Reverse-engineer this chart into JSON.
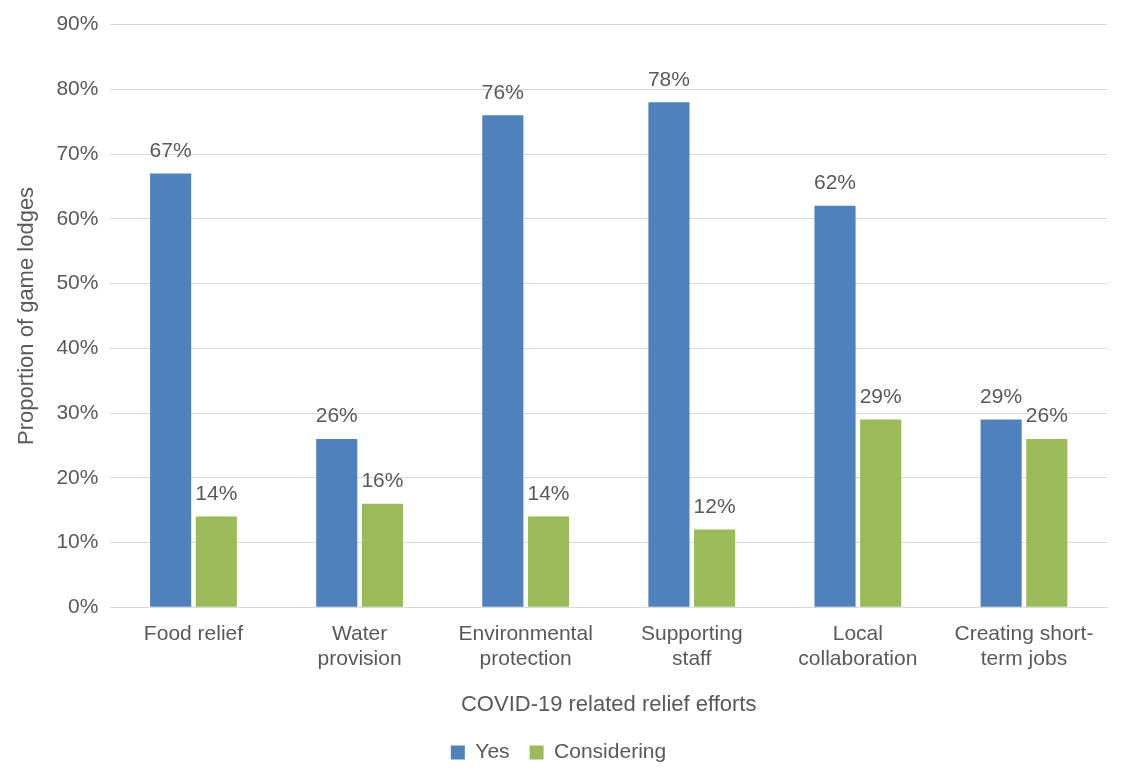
{
  "chart_data": {
    "type": "bar",
    "xlabel": "COVID-19 related relief efforts",
    "ylabel": "Proportion of game lodges",
    "categories": [
      "Food relief",
      "Water provision",
      "Environmental protection",
      "Supporting staff",
      "Local collaboration",
      "Creating short-term jobs"
    ],
    "series": [
      {
        "name": "Yes",
        "color": "#4f81bd",
        "values": [
          67,
          26,
          76,
          78,
          62,
          29
        ],
        "value_labels": [
          "67%",
          "26%",
          "76%",
          "78%",
          "62%",
          "29%"
        ]
      },
      {
        "name": "Considering",
        "color": "#9bbb59",
        "values": [
          14,
          16,
          14,
          12,
          29,
          26
        ],
        "value_labels": [
          "14%",
          "16%",
          "14%",
          "12%",
          "29%",
          "26%"
        ]
      }
    ],
    "ylim": [
      0,
      90
    ],
    "yticks": [
      {
        "value": 0,
        "label": "0%"
      },
      {
        "value": 10,
        "label": "10%"
      },
      {
        "value": 20,
        "label": "20%"
      },
      {
        "value": 30,
        "label": "30%"
      },
      {
        "value": 40,
        "label": "40%"
      },
      {
        "value": 50,
        "label": "50%"
      },
      {
        "value": 60,
        "label": "60%"
      },
      {
        "value": 70,
        "label": "70%"
      },
      {
        "value": 80,
        "label": "80%"
      },
      {
        "value": 90,
        "label": "90%"
      }
    ],
    "grid": "y",
    "legend": "bottom"
  }
}
